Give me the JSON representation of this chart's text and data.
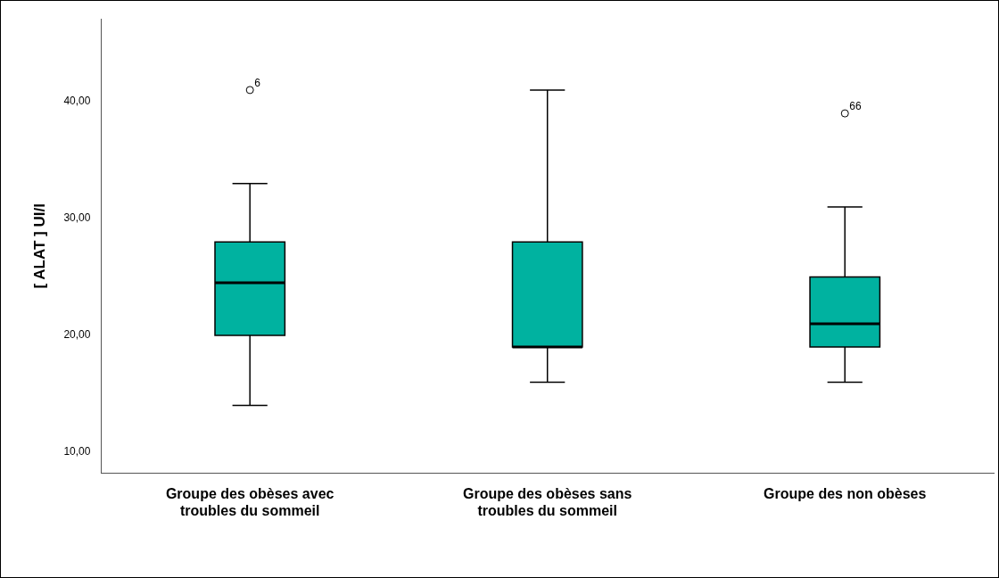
{
  "chart_data": {
    "type": "box",
    "ylabel": "[ ALAT ] UI/l",
    "categories": [
      "Groupe des obèses avec troubles du sommeil",
      "Groupe des obèses sans troubles du sommeil",
      "Groupe des non obèses"
    ],
    "color": "#00b2a0",
    "boxes": [
      {
        "low": 14,
        "q1": 20,
        "median": 24.5,
        "q3": 28,
        "high": 33,
        "outliers": [
          41
        ]
      },
      {
        "low": 16,
        "q1": 19,
        "median": 19,
        "q3": 28,
        "high": 41
      },
      {
        "low": 16,
        "q1": 19,
        "median": 21,
        "q3": 25,
        "high": 31,
        "outliers": [
          39
        ]
      }
    ],
    "ylim": [
      8.2,
      47.1
    ],
    "yticks": [
      {
        "value": 10,
        "label": "10,00"
      },
      {
        "value": 20,
        "label": "20,00"
      },
      {
        "value": 30,
        "label": "30,00"
      },
      {
        "value": 40,
        "label": "40,00"
      }
    ],
    "grid": false,
    "legend": false,
    "annotations": [
      "6",
      "66"
    ]
  }
}
